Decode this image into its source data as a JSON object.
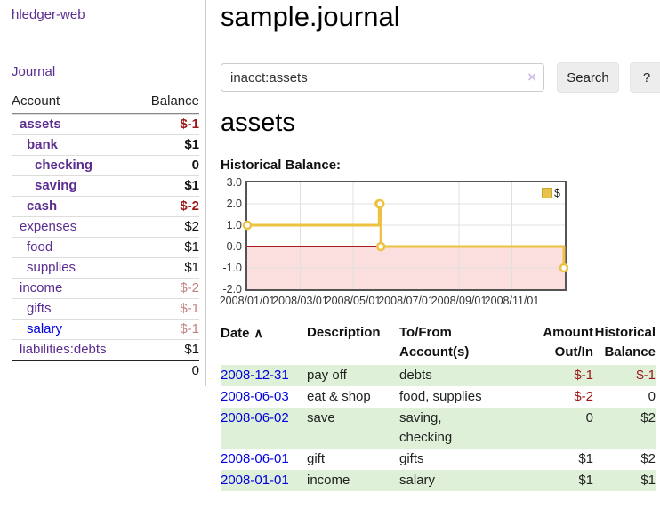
{
  "colors": {
    "link_purple": "#5b2d90",
    "link_blue": "#0000e0",
    "negative_strong": "#9c1717",
    "negative_soft": "#c08181",
    "row_green": "#dff0d8",
    "chart_line": "#edc240",
    "chart_negative_fill": "#fbdede",
    "chart_zero_line": "#a51c1c",
    "button_bg": "#ededed"
  },
  "icons": {
    "clear_search": "×",
    "sort_ascending": "∧"
  },
  "sidebar": {
    "brand": "hledger-web",
    "journal_link": "Journal",
    "account_header": "Account",
    "balance_header": "Balance",
    "accounts": [
      {
        "name": "assets",
        "balance": "$-1"
      },
      {
        "name": "bank",
        "balance": "$1"
      },
      {
        "name": "checking",
        "balance": "0"
      },
      {
        "name": "saving",
        "balance": "$1"
      },
      {
        "name": "cash",
        "balance": "$-2"
      },
      {
        "name": "expenses",
        "balance": "$2"
      },
      {
        "name": "food",
        "balance": "$1"
      },
      {
        "name": "supplies",
        "balance": "$1"
      },
      {
        "name": "income",
        "balance": "$-2"
      },
      {
        "name": "gifts",
        "balance": "$-1"
      },
      {
        "name": "salary",
        "balance": "$-1"
      },
      {
        "name": "liabilities:debts",
        "balance": "$1"
      }
    ],
    "total": "0"
  },
  "main": {
    "title": "sample.journal",
    "search": {
      "value": "inacct:assets",
      "search_button": "Search",
      "help_button": "?"
    },
    "account_heading": "assets",
    "section_label": "Historical Balance:"
  },
  "chart_data": {
    "type": "line",
    "step": true,
    "title": "Historical Balance",
    "series": [
      {
        "name": "$",
        "points": [
          [
            "2008-01-01",
            1
          ],
          [
            "2008-06-01",
            2
          ],
          [
            "2008-06-02",
            2
          ],
          [
            "2008-06-03",
            0
          ],
          [
            "2008-12-31",
            -1
          ]
        ]
      }
    ],
    "xlim": [
      "2008-01-01",
      "2009-01-01"
    ],
    "ylim": [
      -2,
      3
    ],
    "x_ticks": [
      "2008/01/01",
      "2008/03/01",
      "2008/05/01",
      "2008/07/01",
      "2008/09/01",
      "2008/11/01"
    ],
    "y_ticks": [
      "3.0",
      "2.0",
      "1.0",
      "0.0",
      "-1.0",
      "-2.0"
    ],
    "legend": {
      "label": "$",
      "position": "top-right"
    },
    "grid": true,
    "negative_region": true
  },
  "register": {
    "headers": {
      "date": "Date",
      "description": "Description",
      "accounts": "To/From\nAccount(s)",
      "amount": "Amount\nOut/In",
      "balance": "Historical\nBalance"
    },
    "rows": [
      {
        "date": "2008-12-31",
        "description": "pay off",
        "accounts": "debts",
        "amount": "$-1",
        "balance": "$-1"
      },
      {
        "date": "2008-06-03",
        "description": "eat & shop",
        "accounts": "food, supplies",
        "amount": "$-2",
        "balance": "0"
      },
      {
        "date": "2008-06-02",
        "description": "save",
        "accounts": "saving,\nchecking",
        "amount": "0",
        "balance": "$2"
      },
      {
        "date": "2008-06-01",
        "description": "gift",
        "accounts": "gifts",
        "amount": "$1",
        "balance": "$2"
      },
      {
        "date": "2008-01-01",
        "description": "income",
        "accounts": "salary",
        "amount": "$1",
        "balance": "$1"
      }
    ]
  }
}
